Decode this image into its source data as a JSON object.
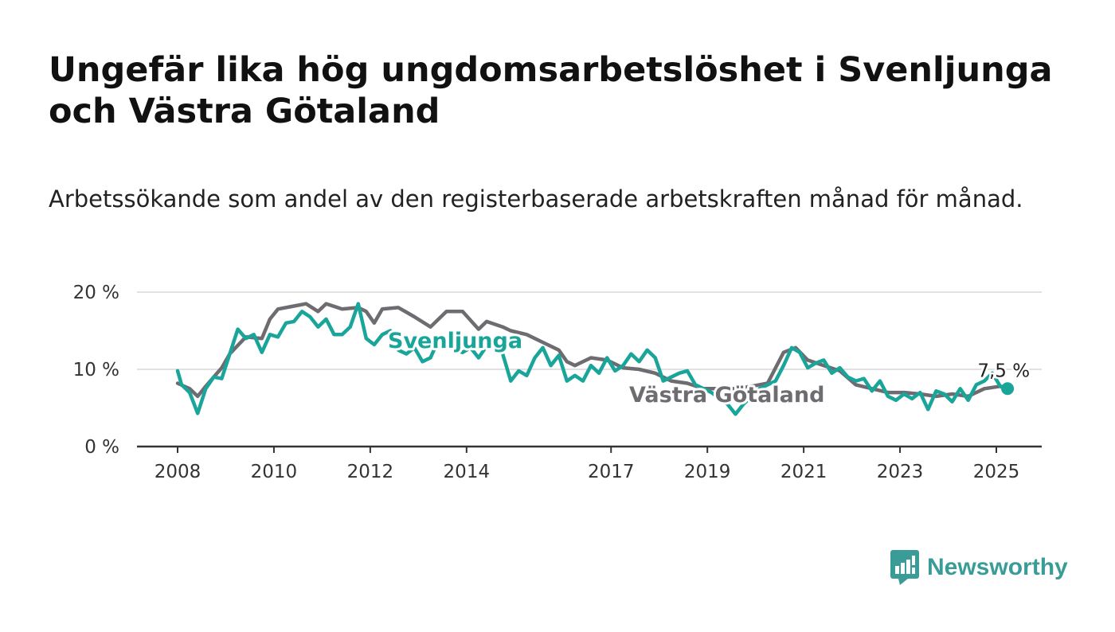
{
  "header": {
    "title": "Ungefär lika hög ungdomsarbetslöshet i Svenljunga och Västra Götaland",
    "subtitle": "Arbetssökande som andel av den registerbaserade arbetskraften månad för månad."
  },
  "brand": {
    "name": "Newsworthy",
    "icon": "newsworthy-logo-icon",
    "color": "#3a9c96"
  },
  "chart_data": {
    "type": "line",
    "x_ticks": [
      "2008",
      "2010",
      "2012",
      "2014",
      "2017",
      "2019",
      "2021",
      "2023",
      "2025"
    ],
    "y_ticks": [
      "0 %",
      "10 %",
      "20 %"
    ],
    "xlim": [
      "2008-01",
      "2025-06"
    ],
    "ylim": [
      0,
      20
    ],
    "grid": true,
    "legend": "inline labels",
    "end_value_label": "7,5 %",
    "series": [
      {
        "name": "Svenljunga",
        "color": "#1aa59b",
        "points": [
          [
            "2008-01",
            9.8
          ],
          [
            "2008-02",
            8.0
          ],
          [
            "2008-04",
            7.0
          ],
          [
            "2008-06",
            4.3
          ],
          [
            "2008-08",
            7.5
          ],
          [
            "2008-10",
            9.0
          ],
          [
            "2008-12",
            8.8
          ],
          [
            "2009-02",
            12.0
          ],
          [
            "2009-04",
            15.2
          ],
          [
            "2009-06",
            14.0
          ],
          [
            "2009-08",
            14.5
          ],
          [
            "2009-10",
            12.2
          ],
          [
            "2009-12",
            14.5
          ],
          [
            "2010-02",
            14.2
          ],
          [
            "2010-04",
            16.0
          ],
          [
            "2010-06",
            16.2
          ],
          [
            "2010-08",
            17.5
          ],
          [
            "2010-10",
            16.8
          ],
          [
            "2010-12",
            15.5
          ],
          [
            "2011-02",
            16.5
          ],
          [
            "2011-04",
            14.5
          ],
          [
            "2011-06",
            14.5
          ],
          [
            "2011-08",
            15.5
          ],
          [
            "2011-10",
            18.5
          ],
          [
            "2011-12",
            14.0
          ],
          [
            "2012-02",
            13.2
          ],
          [
            "2012-04",
            14.5
          ],
          [
            "2012-06",
            15.0
          ],
          [
            "2012-08",
            12.5
          ],
          [
            "2012-10",
            12.0
          ],
          [
            "2012-12",
            12.8
          ],
          [
            "2013-02",
            11.0
          ],
          [
            "2013-04",
            11.5
          ],
          [
            "2013-06",
            13.8
          ],
          [
            "2013-08",
            13.2
          ],
          [
            "2013-10",
            12.5
          ],
          [
            "2013-12",
            12.2
          ],
          [
            "2014-02",
            12.8
          ],
          [
            "2014-04",
            11.5
          ],
          [
            "2014-06",
            13.0
          ],
          [
            "2014-08",
            13.5
          ],
          [
            "2014-10",
            12.0
          ],
          [
            "2014-12",
            8.5
          ],
          [
            "2015-02",
            9.8
          ],
          [
            "2015-04",
            9.2
          ],
          [
            "2015-06",
            11.5
          ],
          [
            "2015-08",
            12.8
          ],
          [
            "2015-10",
            10.5
          ],
          [
            "2015-12",
            11.8
          ],
          [
            "2016-02",
            8.5
          ],
          [
            "2016-04",
            9.2
          ],
          [
            "2016-06",
            8.5
          ],
          [
            "2016-08",
            10.5
          ],
          [
            "2016-10",
            9.5
          ],
          [
            "2016-12",
            11.5
          ],
          [
            "2017-02",
            9.8
          ],
          [
            "2017-04",
            10.5
          ],
          [
            "2017-06",
            12.0
          ],
          [
            "2017-08",
            11.0
          ],
          [
            "2017-10",
            12.5
          ],
          [
            "2017-12",
            11.5
          ],
          [
            "2018-02",
            8.5
          ],
          [
            "2018-04",
            9.0
          ],
          [
            "2018-06",
            9.5
          ],
          [
            "2018-08",
            9.8
          ],
          [
            "2018-10",
            8.0
          ],
          [
            "2019-02",
            7.0
          ],
          [
            "2019-06",
            5.5
          ],
          [
            "2019-08",
            4.2
          ],
          [
            "2019-10",
            5.5
          ],
          [
            "2020-02",
            7.5
          ],
          [
            "2020-06",
            8.5
          ],
          [
            "2020-08",
            10.5
          ],
          [
            "2020-10",
            12.8
          ],
          [
            "2020-12",
            12.2
          ],
          [
            "2021-02",
            10.2
          ],
          [
            "2021-04",
            10.8
          ],
          [
            "2021-06",
            11.2
          ],
          [
            "2021-08",
            9.5
          ],
          [
            "2021-10",
            10.2
          ],
          [
            "2021-12",
            9.0
          ],
          [
            "2022-02",
            8.5
          ],
          [
            "2022-04",
            8.8
          ],
          [
            "2022-06",
            7.2
          ],
          [
            "2022-08",
            8.5
          ],
          [
            "2022-10",
            6.5
          ],
          [
            "2022-12",
            6.0
          ],
          [
            "2023-02",
            6.8
          ],
          [
            "2023-04",
            6.2
          ],
          [
            "2023-06",
            7.0
          ],
          [
            "2023-08",
            4.8
          ],
          [
            "2023-10",
            7.2
          ],
          [
            "2023-12",
            6.8
          ],
          [
            "2024-02",
            5.8
          ],
          [
            "2024-04",
            7.5
          ],
          [
            "2024-06",
            6.0
          ],
          [
            "2024-08",
            8.0
          ],
          [
            "2024-10",
            8.5
          ],
          [
            "2024-12",
            9.5
          ],
          [
            "2025-02",
            7.8
          ],
          [
            "2025-03",
            7.5
          ]
        ]
      },
      {
        "name": "Västra Götaland",
        "color": "#6e6c71",
        "points": [
          [
            "2008-01",
            8.2
          ],
          [
            "2008-04",
            7.5
          ],
          [
            "2008-06",
            6.5
          ],
          [
            "2008-08",
            7.8
          ],
          [
            "2008-12",
            10.2
          ],
          [
            "2009-02",
            12.0
          ],
          [
            "2009-06",
            14.2
          ],
          [
            "2009-10",
            14.0
          ],
          [
            "2009-12",
            16.5
          ],
          [
            "2010-02",
            17.8
          ],
          [
            "2010-06",
            18.2
          ],
          [
            "2010-09",
            18.5
          ],
          [
            "2010-12",
            17.5
          ],
          [
            "2011-02",
            18.5
          ],
          [
            "2011-06",
            17.8
          ],
          [
            "2011-10",
            18.0
          ],
          [
            "2011-12",
            17.5
          ],
          [
            "2012-02",
            16.0
          ],
          [
            "2012-04",
            17.8
          ],
          [
            "2012-08",
            18.0
          ],
          [
            "2012-12",
            16.8
          ],
          [
            "2013-04",
            15.5
          ],
          [
            "2013-08",
            17.5
          ],
          [
            "2013-12",
            17.5
          ],
          [
            "2014-04",
            15.2
          ],
          [
            "2014-06",
            16.2
          ],
          [
            "2014-10",
            15.5
          ],
          [
            "2014-12",
            15.0
          ],
          [
            "2015-04",
            14.5
          ],
          [
            "2015-08",
            13.5
          ],
          [
            "2015-12",
            12.5
          ],
          [
            "2016-02",
            11.0
          ],
          [
            "2016-04",
            10.5
          ],
          [
            "2016-08",
            11.5
          ],
          [
            "2016-12",
            11.2
          ],
          [
            "2017-04",
            10.2
          ],
          [
            "2017-08",
            10.0
          ],
          [
            "2017-12",
            9.5
          ],
          [
            "2018-04",
            8.5
          ],
          [
            "2018-08",
            8.2
          ],
          [
            "2018-12",
            7.5
          ],
          [
            "2019-04",
            7.5
          ],
          [
            "2019-08",
            7.5
          ],
          [
            "2019-12",
            7.8
          ],
          [
            "2020-04",
            8.2
          ],
          [
            "2020-08",
            12.2
          ],
          [
            "2020-11",
            12.8
          ],
          [
            "2021-02",
            11.2
          ],
          [
            "2021-06",
            10.5
          ],
          [
            "2021-10",
            9.8
          ],
          [
            "2022-02",
            8.0
          ],
          [
            "2022-06",
            7.5
          ],
          [
            "2022-10",
            7.0
          ],
          [
            "2023-02",
            7.0
          ],
          [
            "2023-06",
            6.8
          ],
          [
            "2023-10",
            6.5
          ],
          [
            "2024-02",
            6.8
          ],
          [
            "2024-06",
            6.5
          ],
          [
            "2024-10",
            7.5
          ],
          [
            "2025-02",
            7.8
          ],
          [
            "2025-03",
            7.7
          ]
        ]
      }
    ]
  }
}
